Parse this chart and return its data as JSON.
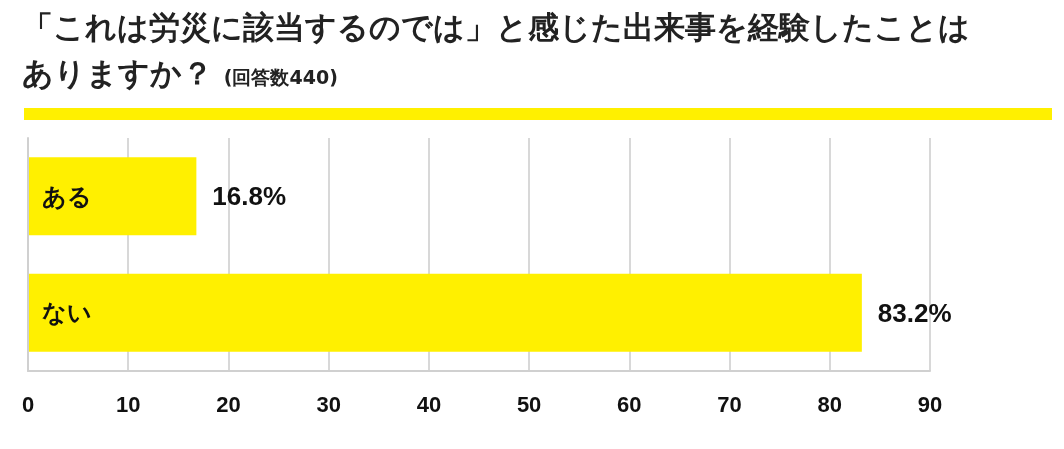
{
  "chart_data": {
    "type": "bar",
    "orientation": "horizontal",
    "title": "「これは労災に該当するのでは」と感じた出来事を経験したことはありますか？",
    "subtitle": "(回答数440)",
    "categories": [
      "ある",
      "ない"
    ],
    "values": [
      16.8,
      83.2
    ],
    "value_labels": [
      "16.8%",
      "83.2%"
    ],
    "color": "#fff000",
    "xlim": [
      0,
      90
    ],
    "xticks": [
      0,
      10,
      20,
      30,
      40,
      50,
      60,
      70,
      80,
      90
    ],
    "grid": "x"
  }
}
